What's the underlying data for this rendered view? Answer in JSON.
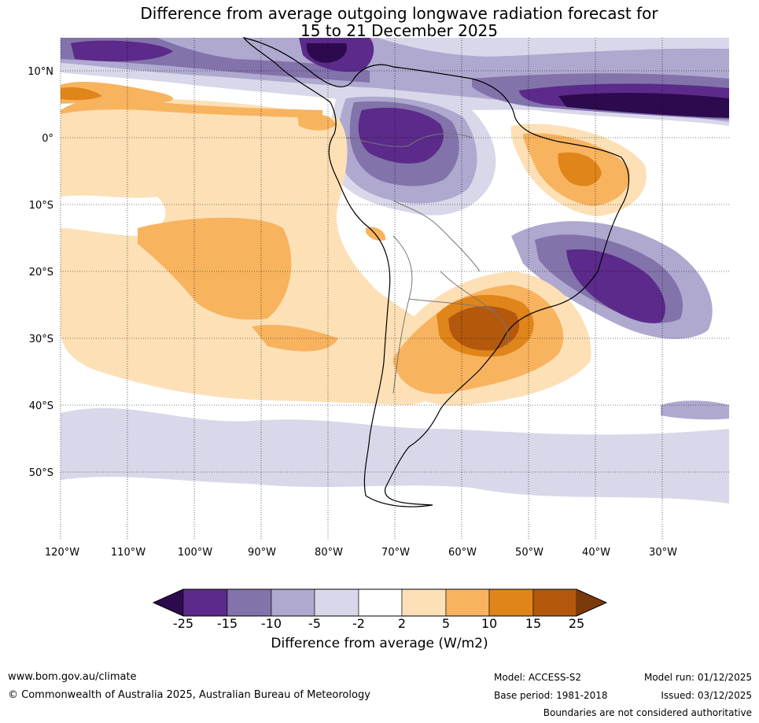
{
  "title": {
    "line1": "Difference from average outgoing longwave radiation forecast for",
    "line2": "15 to 21 December 2025"
  },
  "map": {
    "lat_labels": [
      "10°N",
      "0°",
      "10°S",
      "20°S",
      "30°S",
      "40°S",
      "50°S"
    ],
    "lon_labels": [
      "120°W",
      "110°W",
      "100°W",
      "90°W",
      "80°W",
      "70°W",
      "60°W",
      "50°W",
      "40°W",
      "30°W"
    ],
    "lon_range": [
      -120,
      -20
    ],
    "lat_range": [
      -60,
      15
    ]
  },
  "colorbar": {
    "ticks": [
      "-25",
      "-15",
      "-10",
      "-5",
      "-2",
      "2",
      "5",
      "10",
      "15",
      "25"
    ],
    "colors": [
      "#2d0a4e",
      "#5b2a8a",
      "#8273ab",
      "#afa8cf",
      "#d8d8ea",
      "#ffffff",
      "#fde0b6",
      "#f8b35f",
      "#e08519",
      "#b3580d",
      "#7a3a0b"
    ],
    "label": "Difference from average (W/m2)"
  },
  "footer": {
    "website": "www.bom.gov.au/climate",
    "copyright": "© Commonwealth of Australia 2025, Australian Bureau of Meteorology",
    "model": "Model: ACCESS-S2",
    "base_period": "Base period: 1981-2018",
    "model_run": "Model run: 01/12/2025",
    "issued": "Issued: 03/12/2025",
    "boundaries": "Boundaries are not considered authoritative"
  }
}
